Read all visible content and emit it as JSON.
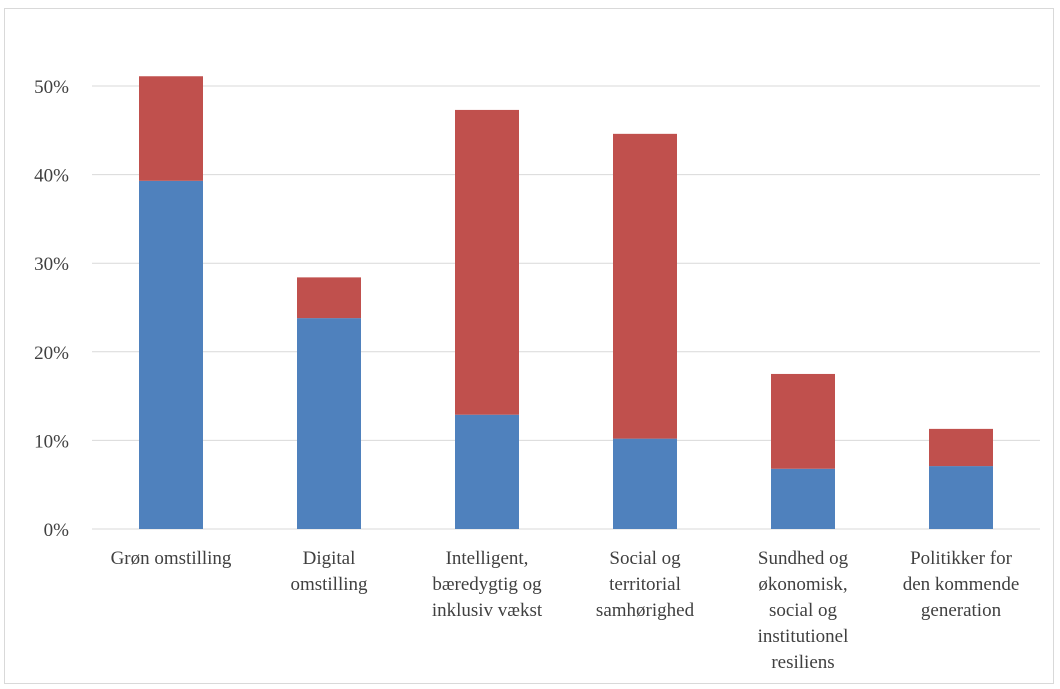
{
  "chart_data": {
    "type": "bar",
    "stacked": true,
    "categories": [
      [
        "Grøn omstilling"
      ],
      [
        "Digital",
        "omstilling"
      ],
      [
        "Intelligent,",
        "bæredygtig og",
        "inklusiv vækst"
      ],
      [
        "Social og",
        "territorial",
        "samhørighed"
      ],
      [
        "Sundhed og",
        "økonomisk,",
        "social og",
        "institutionel",
        "resiliens"
      ],
      [
        "Politikker for",
        "den kommende",
        "generation"
      ]
    ],
    "series": [
      {
        "color": "#4f81bd",
        "values": [
          39.3,
          23.8,
          12.9,
          10.2,
          6.8,
          7.1
        ]
      },
      {
        "color": "#c0504d",
        "values": [
          11.8,
          4.6,
          34.4,
          34.4,
          10.7,
          4.2
        ]
      }
    ],
    "title": "",
    "xlabel": "",
    "ylabel": "",
    "ylim": [
      0,
      50
    ],
    "yticks": [
      "0%",
      "10%",
      "20%",
      "30%",
      "40%",
      "50%"
    ],
    "grid": true,
    "legend": "none"
  }
}
